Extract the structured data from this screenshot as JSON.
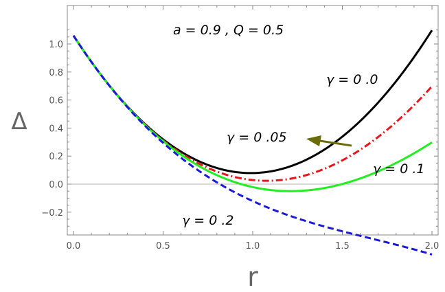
{
  "chart_data": {
    "type": "line",
    "title": "",
    "xlabel": "r",
    "ylabel": "Δ",
    "xlim": [
      0.0,
      2.0
    ],
    "ylim": [
      -0.3,
      1.1
    ],
    "xticks": [
      "0.0",
      "0.5",
      "1.0",
      "1.5",
      "2.0"
    ],
    "yticks": [
      "-0.2",
      "0.0",
      "0.2",
      "0.4",
      "0.6",
      "0.8",
      "1.0"
    ],
    "grid": false,
    "zero_line": true,
    "params": {
      "a": 0.9,
      "Q": 0.5
    },
    "series": [
      {
        "gamma": 0.0,
        "color": "#000000",
        "dash": "solid"
      },
      {
        "gamma": 0.05,
        "color": "#e8161b",
        "dash": "dashdot"
      },
      {
        "gamma": 0.1,
        "color": "#22ee22",
        "dash": "solid"
      },
      {
        "gamma": 0.2,
        "color": "#1a1ad6",
        "dash": "dashed"
      }
    ],
    "annotations": {
      "params_text": "a = 0.9 ,  Q = 0.5",
      "label_g0": "γ = 0 .0",
      "label_g005": "γ = 0 .05",
      "label_g01": "γ = 0 .1",
      "label_g02": "γ = 0 .2",
      "arrow_color": "#6b6b0a"
    }
  }
}
